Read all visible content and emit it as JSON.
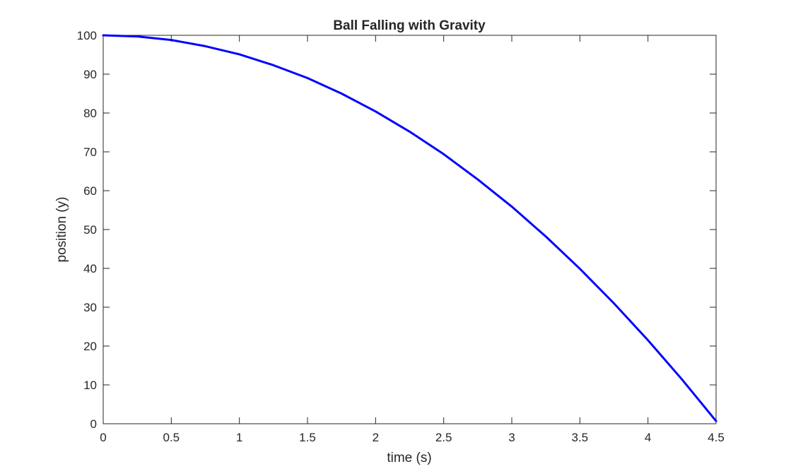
{
  "chart_data": {
    "type": "line",
    "title": "Ball Falling with Gravity",
    "xlabel": "time (s)",
    "ylabel": "position (y)",
    "xlim": [
      0,
      4.5
    ],
    "ylim": [
      0,
      100
    ],
    "xticks": [
      0,
      0.5,
      1,
      1.5,
      2,
      2.5,
      3,
      3.5,
      4,
      4.5
    ],
    "yticks": [
      0,
      10,
      20,
      30,
      40,
      50,
      60,
      70,
      80,
      90,
      100
    ],
    "xtick_labels": [
      "0",
      "0.5",
      "1",
      "1.5",
      "2",
      "2.5",
      "3",
      "3.5",
      "4",
      "4.5"
    ],
    "ytick_labels": [
      "0",
      "10",
      "20",
      "30",
      "40",
      "50",
      "60",
      "70",
      "80",
      "90",
      "100"
    ],
    "grid": false,
    "series": [
      {
        "color": "#0000ff",
        "x": [
          0,
          0.25,
          0.5,
          0.75,
          1,
          1.25,
          1.5,
          1.75,
          2,
          2.25,
          2.5,
          2.75,
          3,
          3.25,
          3.5,
          3.75,
          4,
          4.25,
          4.5
        ],
        "values": [
          100,
          99.7,
          98.8,
          97.2,
          95.1,
          92.3,
          89.0,
          85.0,
          80.4,
          75.2,
          69.4,
          62.9,
          55.9,
          48.2,
          39.9,
          31.0,
          21.5,
          11.4,
          0.7
        ]
      }
    ]
  }
}
